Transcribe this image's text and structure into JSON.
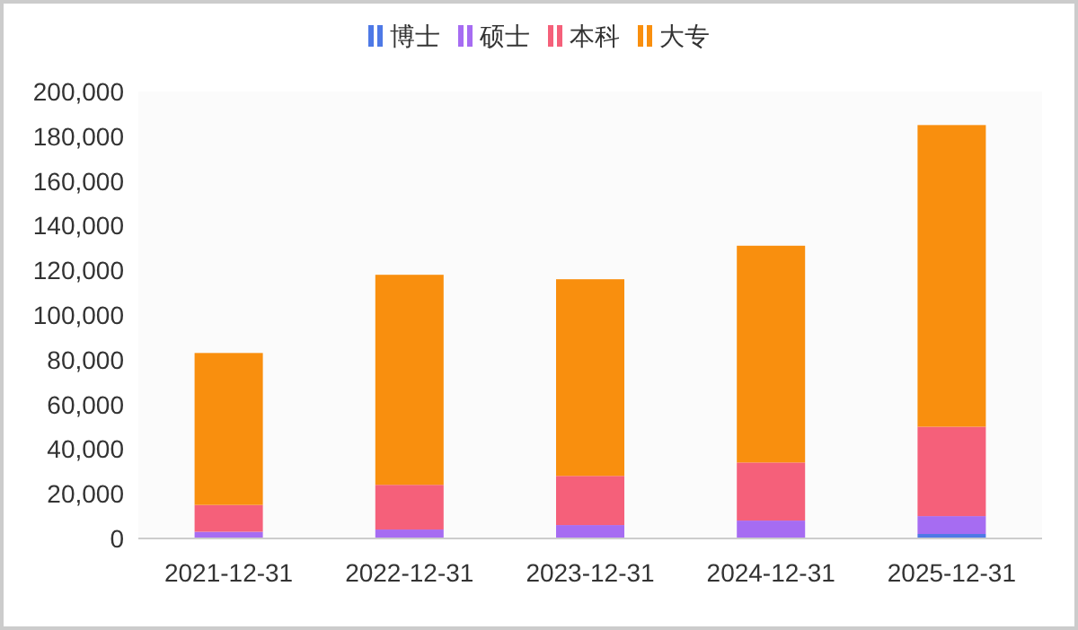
{
  "chart_data": {
    "type": "bar",
    "stacked": true,
    "categories": [
      "2021-12-31",
      "2022-12-31",
      "2023-12-31",
      "2024-12-31",
      "2025-12-31"
    ],
    "series": [
      {
        "name": "博士",
        "color": "#4e79e6",
        "values": [
          null,
          null,
          null,
          null,
          2000
        ]
      },
      {
        "name": "硕士",
        "color": "#a66cf2",
        "values": [
          3000,
          4000,
          6000,
          8000,
          8000
        ]
      },
      {
        "name": "本科",
        "color": "#f5607a",
        "values": [
          12000,
          20000,
          22000,
          26000,
          40000
        ]
      },
      {
        "name": "大专",
        "color": "#f98f0e",
        "values": [
          68000,
          94000,
          88000,
          97000,
          135000
        ]
      }
    ],
    "ylim": [
      0,
      200000
    ],
    "yticks": [
      0,
      {
        "value": 20000,
        "label": "20,000"
      },
      {
        "value": 40000,
        "label": "40,000"
      },
      {
        "value": 60000,
        "label": "60,000"
      },
      {
        "value": 80000,
        "label": "80,000"
      },
      {
        "value": 100000,
        "label": "100,000"
      },
      {
        "value": 120000,
        "label": "120,000"
      },
      {
        "value": 140000,
        "label": "140,000"
      },
      {
        "value": 160000,
        "label": "160,000"
      },
      {
        "value": 180000,
        "label": "180,000"
      },
      {
        "value": 200000,
        "label": "200,000"
      }
    ],
    "legend": "top"
  }
}
